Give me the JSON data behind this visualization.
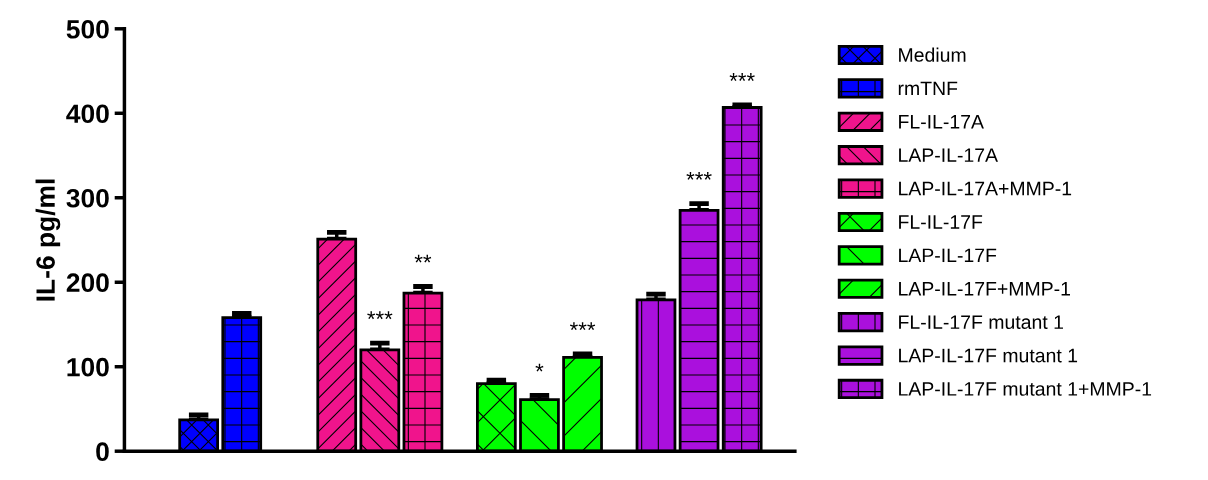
{
  "chart_data": {
    "type": "bar",
    "ylabel": "IL-6 pg/ml",
    "categories": [
      null,
      null,
      null,
      null
    ],
    "ylim": [
      0,
      500
    ],
    "yticks": [
      0,
      100,
      200,
      300,
      400,
      500
    ],
    "grid": false,
    "legend": "right",
    "series": [
      {
        "name": "Medium",
        "color": "#0000ff",
        "values": [
          37,
          null,
          null,
          null
        ],
        "errors": [
          [
            37,
            43
          ],
          null,
          null,
          null
        ]
      },
      {
        "name": "rmTNF",
        "color": "#0000ff",
        "values": [
          158,
          null,
          null,
          null
        ],
        "errors": [
          [
            158,
            163
          ],
          null,
          null,
          null
        ]
      },
      {
        "name": "FL-IL-17A",
        "color": "#f0148c",
        "values": [
          null,
          251,
          null,
          null
        ],
        "errors": [
          null,
          [
            251,
            259
          ],
          null,
          null
        ]
      },
      {
        "name": "LAP-IL-17A",
        "color": "#f0148c",
        "values": [
          null,
          120,
          null,
          null
        ],
        "errors": [
          null,
          [
            120,
            128
          ],
          null,
          null
        ],
        "value_labels": [
          null,
          "***",
          null,
          null
        ]
      },
      {
        "name": "LAP-IL-17A+MMP-1",
        "color": "#f0148c",
        "values": [
          null,
          187,
          null,
          null
        ],
        "errors": [
          null,
          [
            187,
            195
          ],
          null,
          null
        ],
        "value_labels": [
          null,
          "**",
          null,
          null
        ]
      },
      {
        "name": "FL-IL-17F",
        "color": "#00ff00",
        "values": [
          null,
          null,
          80,
          null
        ],
        "errors": [
          null,
          null,
          [
            80,
            84
          ],
          null
        ]
      },
      {
        "name": "LAP-IL-17F",
        "color": "#00ff00",
        "values": [
          null,
          null,
          61,
          null
        ],
        "errors": [
          null,
          null,
          [
            61,
            66
          ],
          null
        ],
        "value_labels": [
          null,
          null,
          "*",
          null
        ]
      },
      {
        "name": "LAP-IL-17F+MMP-1",
        "color": "#00ff00",
        "values": [
          null,
          null,
          111,
          null
        ],
        "errors": [
          null,
          null,
          [
            111,
            115
          ],
          null
        ],
        "value_labels": [
          null,
          null,
          "***",
          null
        ]
      },
      {
        "name": "FL-IL-17F mutant 1",
        "color": "#aa10dd",
        "values": [
          null,
          null,
          null,
          179
        ],
        "errors": [
          null,
          null,
          null,
          [
            179,
            186
          ]
        ]
      },
      {
        "name": "LAP-IL-17F mutant 1",
        "color": "#aa10dd",
        "values": [
          null,
          null,
          null,
          285
        ],
        "errors": [
          null,
          null,
          null,
          [
            285,
            293
          ]
        ],
        "value_labels": [
          null,
          null,
          null,
          "***"
        ]
      },
      {
        "name": "LAP-IL-17F mutant 1+MMP-1",
        "color": "#aa10dd",
        "values": [
          null,
          null,
          null,
          407
        ],
        "errors": [
          null,
          null,
          null,
          [
            407,
            410
          ]
        ],
        "value_labels": [
          null,
          null,
          null,
          "***"
        ]
      }
    ]
  }
}
